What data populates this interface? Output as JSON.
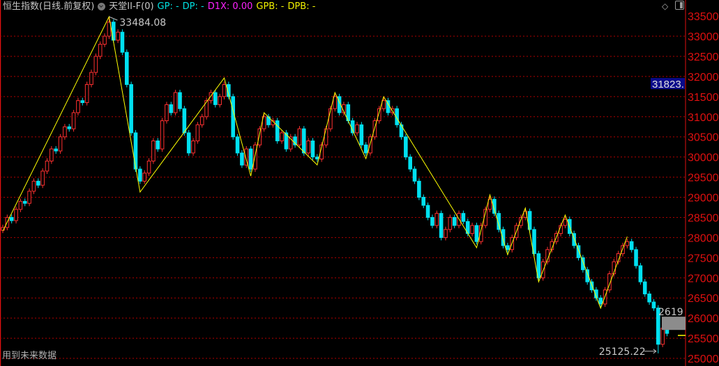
{
  "header": {
    "title": "恒生指数(日线.前复权)",
    "indicator": "天堂II-F(0)",
    "gp": "GP: -",
    "dp": "DP: -",
    "d1x": "D1X: 0.00",
    "gpb": "GPB: -",
    "dpb": "DPB: -"
  },
  "footer_note": "用到未来数据",
  "icons": [
    "dropdown-circle-icon",
    "diamond-icon",
    "panel-toggle-icon"
  ],
  "colors": {
    "up": "#ff3030",
    "down": "#00e0f0",
    "zigzag": "#ffff00",
    "grid": "#b00000",
    "axis": "#e01010",
    "current_price_bg": "#0a0a8a",
    "marker_bg": "#8c8c8c"
  },
  "chart_data": {
    "type": "candlestick",
    "ylim": [
      25000,
      33500
    ],
    "yticks": [
      "33500",
      "33000",
      "32500",
      "32000",
      "31500",
      "31000",
      "30500",
      "30000",
      "29500",
      "29000",
      "28500",
      "28000",
      "27500",
      "27000",
      "26500",
      "26000",
      "25500",
      "25000"
    ],
    "grid": true,
    "first_open": 28180,
    "close": [
      28250,
      28500,
      28420,
      28700,
      28900,
      28850,
      29150,
      29400,
      29300,
      29650,
      29900,
      30200,
      30150,
      30500,
      30750,
      30700,
      31100,
      31400,
      31350,
      31800,
      32100,
      32500,
      32800,
      33000,
      33350,
      32900,
      33100,
      32600,
      31800,
      30600,
      29700,
      29400,
      29600,
      29900,
      30400,
      30200,
      30900,
      31300,
      31100,
      31600,
      31200,
      30600,
      30100,
      30400,
      30800,
      31000,
      31400,
      31600,
      31300,
      31500,
      31800,
      31500,
      30500,
      30100,
      29800,
      30200,
      29700,
      30300,
      30700,
      31000,
      30800,
      30900,
      30400,
      30600,
      30200,
      30500,
      30300,
      30700,
      30100,
      30400,
      30000,
      29950,
      30300,
      30700,
      31200,
      31500,
      31100,
      31300,
      30900,
      30600,
      30800,
      30300,
      30100,
      30500,
      30900,
      31200,
      31400,
      31100,
      31200,
      30800,
      30500,
      30000,
      29700,
      29400,
      29000,
      28800,
      28500,
      28300,
      28600,
      28000,
      28200,
      28500,
      28300,
      28600,
      28400,
      28100,
      28300,
      27900,
      28300,
      28700,
      28950,
      28600,
      28200,
      27800,
      27700,
      28000,
      28300,
      28500,
      28650,
      28200,
      27600,
      27000,
      27400,
      27700,
      27900,
      28100,
      28300,
      28450,
      28100,
      27800,
      27500,
      27200,
      26900,
      26700,
      26500,
      26350,
      26700,
      27100,
      27400,
      27600,
      27800,
      27900,
      27700,
      27300,
      26900,
      26600,
      26400,
      26250,
      25350,
      25750,
      25620
    ],
    "zigzag_pivots": [
      [
        0,
        28162
      ],
      [
        24,
        33484
      ],
      [
        31,
        29130
      ],
      [
        50,
        31963
      ],
      [
        56,
        29527
      ],
      [
        59,
        31100
      ],
      [
        71,
        29804
      ],
      [
        75,
        31601
      ],
      [
        82,
        29959
      ],
      [
        86,
        31497
      ],
      [
        107,
        27748
      ],
      [
        110,
        29061
      ],
      [
        114,
        27575
      ],
      [
        118,
        28732
      ],
      [
        121,
        26901
      ],
      [
        127,
        28560
      ],
      [
        135,
        26245
      ],
      [
        141,
        28024
      ]
    ],
    "annotations": {
      "high_label": "33484.08",
      "high_value": 33484.08,
      "high_index": 24,
      "low_label": "25125.22",
      "low_value": 25125.22,
      "low_index": 148
    },
    "current_price_label": "31823.",
    "current_price": 31823,
    "marker_label": "2619",
    "marker_price": 26190,
    "last_line_price": 25570
  }
}
